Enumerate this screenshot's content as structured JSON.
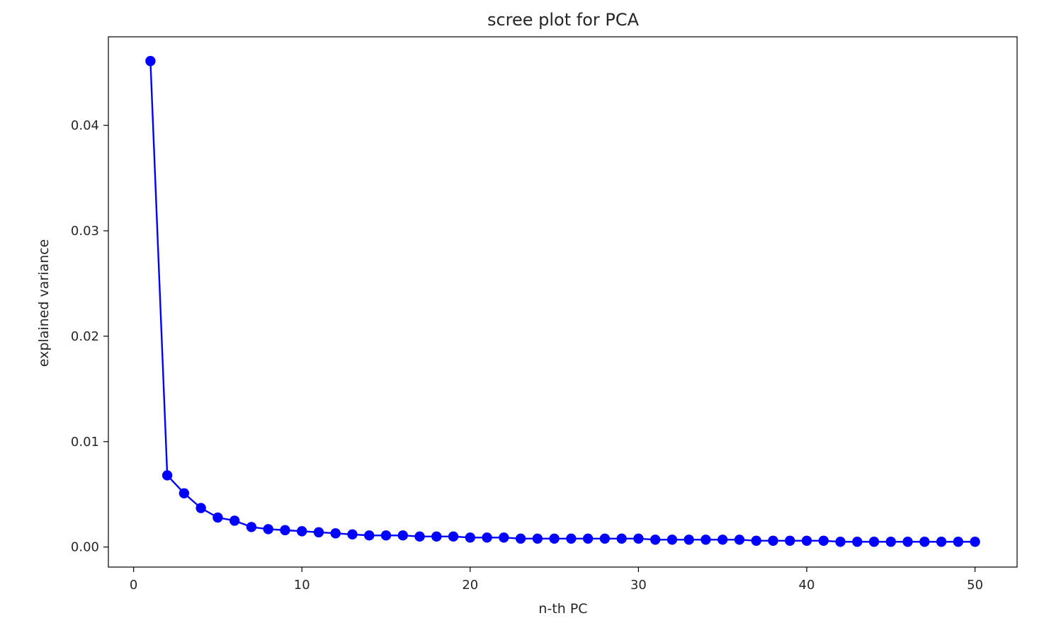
{
  "chart_data": {
    "type": "line",
    "title": "scree plot for PCA",
    "xlabel": "n-th PC",
    "ylabel": "explained variance",
    "xlim": [
      -1.5,
      52.5
    ],
    "ylim": [
      -0.0019,
      0.0484
    ],
    "xticks": [
      0,
      10,
      20,
      30,
      40,
      50
    ],
    "xtick_labels": [
      "0",
      "10",
      "20",
      "30",
      "40",
      "50"
    ],
    "yticks": [
      0.0,
      0.01,
      0.02,
      0.03,
      0.04
    ],
    "ytick_labels": [
      "0.00",
      "0.01",
      "0.02",
      "0.03",
      "0.04"
    ],
    "grid": false,
    "series": [
      {
        "color": "#0000ff",
        "marker": "circle",
        "x": [
          1,
          2,
          3,
          4,
          5,
          6,
          7,
          8,
          9,
          10,
          11,
          12,
          13,
          14,
          15,
          16,
          17,
          18,
          19,
          20,
          21,
          22,
          23,
          24,
          25,
          26,
          27,
          28,
          29,
          30,
          31,
          32,
          33,
          34,
          35,
          36,
          37,
          38,
          39,
          40,
          41,
          42,
          43,
          44,
          45,
          46,
          47,
          48,
          49,
          50
        ],
        "y": [
          0.0461,
          0.0068,
          0.0051,
          0.0037,
          0.0028,
          0.0025,
          0.0019,
          0.0017,
          0.0016,
          0.0015,
          0.0014,
          0.0013,
          0.0012,
          0.0011,
          0.0011,
          0.0011,
          0.001,
          0.001,
          0.001,
          0.0009,
          0.0009,
          0.0009,
          0.0008,
          0.0008,
          0.0008,
          0.0008,
          0.0008,
          0.0008,
          0.0008,
          0.0008,
          0.0007,
          0.0007,
          0.0007,
          0.0007,
          0.0007,
          0.0007,
          0.0006,
          0.0006,
          0.0006,
          0.0006,
          0.0006,
          0.0005,
          0.0005,
          0.0005,
          0.0005,
          0.0005,
          0.0005,
          0.0005,
          0.0005,
          0.0005
        ]
      }
    ]
  }
}
